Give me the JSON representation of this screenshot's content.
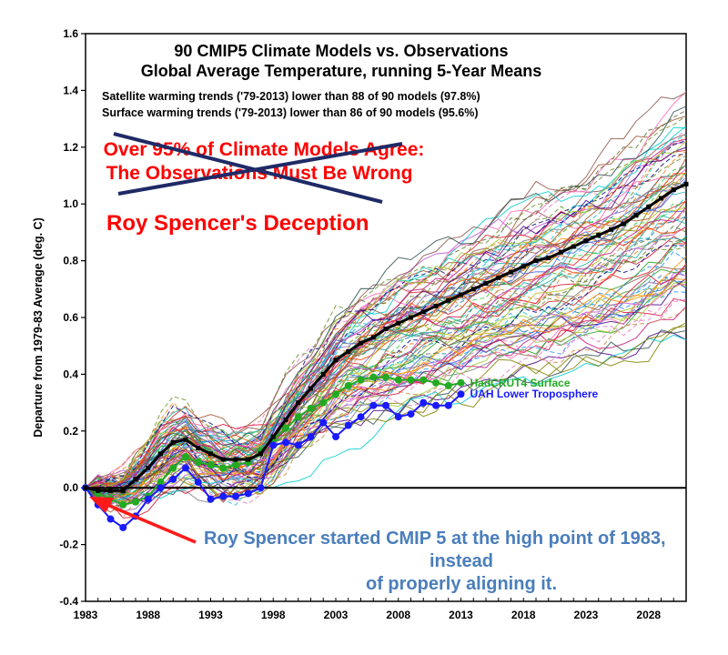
{
  "chart_data": {
    "type": "line",
    "title": "90 CMIP5 Climate Models vs. Observations",
    "subtitle": "Global Average Temperature, running 5-Year Means",
    "notes": [
      "Satellite warming trends ('79-2013) lower than 88 of 90 models (97.8%)",
      "Surface warming trends ('79-2013) lower than 86 of 90 models (95.6%)"
    ],
    "overlay_text": {
      "struck_line1": "Over 95% of Climate Models Agree:",
      "struck_line2": "The Observations Must Be Wrong",
      "headline": "Roy Spencer's Deception",
      "annotation_line1": "Roy Spencer started CMIP 5 at the high point of 1983,",
      "annotation_line2": "instead",
      "annotation_line3": "of properly aligning it."
    },
    "ylabel": "Departure from 1979-83 Average (deg. C)",
    "xlabel": "",
    "xlim": [
      1983,
      2031
    ],
    "ylim": [
      -0.4,
      1.6
    ],
    "xticks": [
      "1983",
      "1988",
      "1993",
      "1998",
      "2003",
      "2008",
      "2013",
      "2018",
      "2023",
      "2028"
    ],
    "yticks": [
      "-0.4",
      "-0.2",
      "0.0",
      "0.2",
      "0.4",
      "0.6",
      "0.8",
      "1.0",
      "1.2",
      "1.4",
      "1.6"
    ],
    "grid": false,
    "series": [
      {
        "name": "HadCRUT4 Surface",
        "color": "#22aa22",
        "x": [
          1983,
          1984,
          1985,
          1986,
          1987,
          1988,
          1989,
          1990,
          1991,
          1992,
          1993,
          1994,
          1995,
          1996,
          1997,
          1998,
          1999,
          2000,
          2001,
          2002,
          2003,
          2004,
          2005,
          2006,
          2007,
          2008,
          2009,
          2010,
          2011,
          2012,
          2013
        ],
        "y": [
          0.0,
          -0.02,
          -0.04,
          -0.06,
          -0.05,
          -0.03,
          0.02,
          0.07,
          0.11,
          0.09,
          0.08,
          0.07,
          0.08,
          0.09,
          0.13,
          0.17,
          0.21,
          0.25,
          0.28,
          0.3,
          0.33,
          0.36,
          0.38,
          0.39,
          0.39,
          0.38,
          0.38,
          0.38,
          0.37,
          0.36,
          0.37
        ]
      },
      {
        "name": "UAH Lower Troposphere",
        "color": "#1a1aff",
        "x": [
          1983,
          1984,
          1985,
          1986,
          1987,
          1988,
          1989,
          1990,
          1991,
          1992,
          1993,
          1994,
          1995,
          1996,
          1997,
          1998,
          1999,
          2000,
          2001,
          2002,
          2003,
          2004,
          2005,
          2006,
          2007,
          2008,
          2009,
          2010,
          2011,
          2012,
          2013
        ],
        "y": [
          0.0,
          -0.06,
          -0.11,
          -0.14,
          -0.1,
          -0.04,
          0.0,
          0.03,
          0.07,
          0.02,
          -0.04,
          -0.03,
          -0.03,
          -0.02,
          0.0,
          0.15,
          0.16,
          0.15,
          0.18,
          0.23,
          0.18,
          0.22,
          0.25,
          0.29,
          0.29,
          0.25,
          0.26,
          0.3,
          0.29,
          0.29,
          0.33
        ]
      },
      {
        "name": "",
        "color": "#000000",
        "x": [
          1983,
          1984,
          1985,
          1986,
          1987,
          1988,
          1989,
          1990,
          1991,
          1992,
          1993,
          1994,
          1995,
          1996,
          1997,
          1998,
          1999,
          2000,
          2001,
          2002,
          2003,
          2004,
          2005,
          2006,
          2007,
          2008,
          2009,
          2010,
          2011,
          2012,
          2013,
          2014,
          2015,
          2016,
          2017,
          2018,
          2019,
          2020,
          2021,
          2022,
          2023,
          2024,
          2025,
          2026,
          2027,
          2028,
          2029,
          2030,
          2031
        ],
        "y": [
          0.0,
          -0.01,
          -0.01,
          -0.01,
          0.03,
          0.07,
          0.12,
          0.16,
          0.17,
          0.14,
          0.12,
          0.1,
          0.1,
          0.1,
          0.12,
          0.18,
          0.24,
          0.3,
          0.35,
          0.4,
          0.45,
          0.48,
          0.51,
          0.53,
          0.56,
          0.58,
          0.6,
          0.62,
          0.64,
          0.66,
          0.68,
          0.7,
          0.72,
          0.74,
          0.76,
          0.78,
          0.8,
          0.81,
          0.83,
          0.85,
          0.87,
          0.89,
          0.91,
          0.93,
          0.96,
          0.99,
          1.02,
          1.05,
          1.07
        ]
      }
    ]
  }
}
